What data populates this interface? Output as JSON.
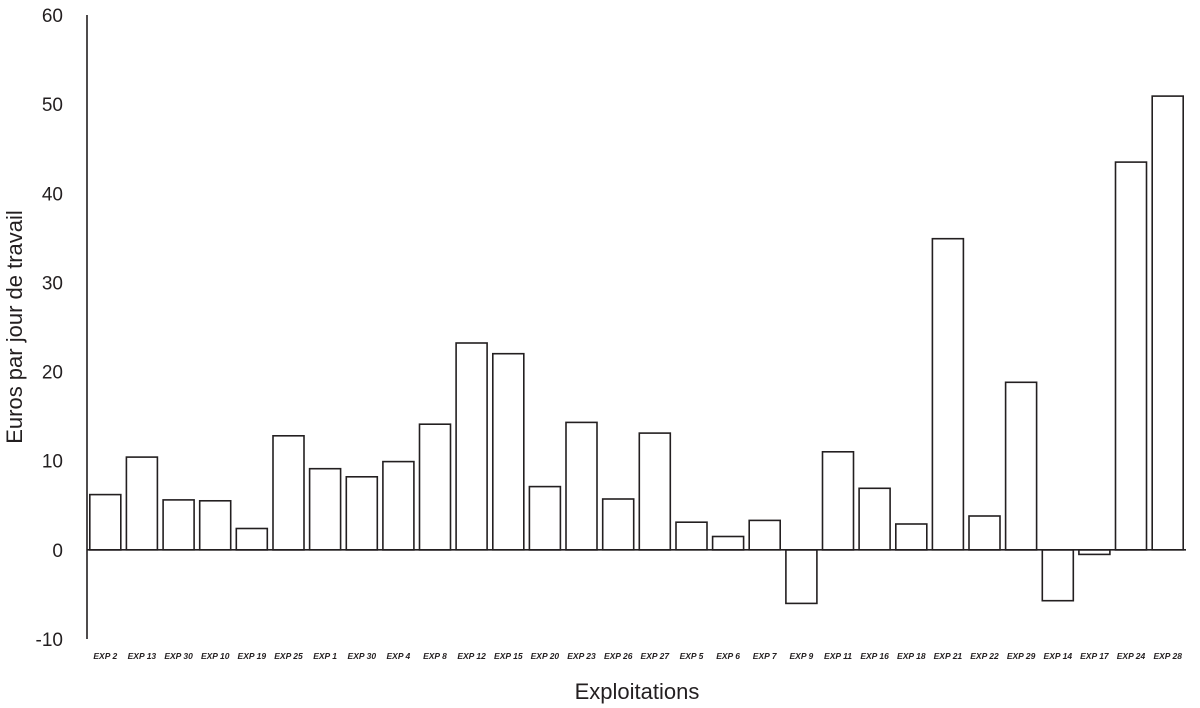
{
  "chart_data": {
    "type": "bar",
    "title": "",
    "xlabel": "Exploitations",
    "ylabel": "Euros  par jour de travail",
    "ylim": [
      -10,
      60
    ],
    "yticks": [
      -10,
      0,
      10,
      20,
      30,
      40,
      50,
      60
    ],
    "grid": false,
    "legend": "none",
    "bar_fill": "#ffffff",
    "bar_stroke": "#231f20",
    "categories": [
      "EXP 2",
      "EXP 13",
      "EXP 30",
      "EXP 10",
      "EXP 19",
      "EXP 25",
      "EXP 1",
      "EXP 30",
      "EXP 4",
      "EXP 8",
      "EXP 12",
      "EXP 15",
      "EXP 20",
      "EXP 23",
      "EXP 26",
      "EXP 27",
      "EXP 5",
      "EXP 6",
      "EXP 7",
      "EXP 9",
      "EXP 11",
      "EXP 16",
      "EXP 18",
      "EXP 21",
      "EXP 22",
      "EXP 29",
      "EXP 14",
      "EXP 17",
      "EXP 24",
      "EXP 28"
    ],
    "values": [
      6.2,
      10.4,
      5.6,
      5.5,
      2.4,
      12.8,
      9.1,
      8.2,
      9.9,
      14.1,
      23.2,
      22.0,
      7.1,
      14.3,
      5.7,
      13.1,
      3.1,
      1.5,
      3.3,
      -6.0,
      11.0,
      6.9,
      2.9,
      34.9,
      3.8,
      18.8,
      -5.7,
      -0.5,
      43.5,
      50.9
    ]
  }
}
